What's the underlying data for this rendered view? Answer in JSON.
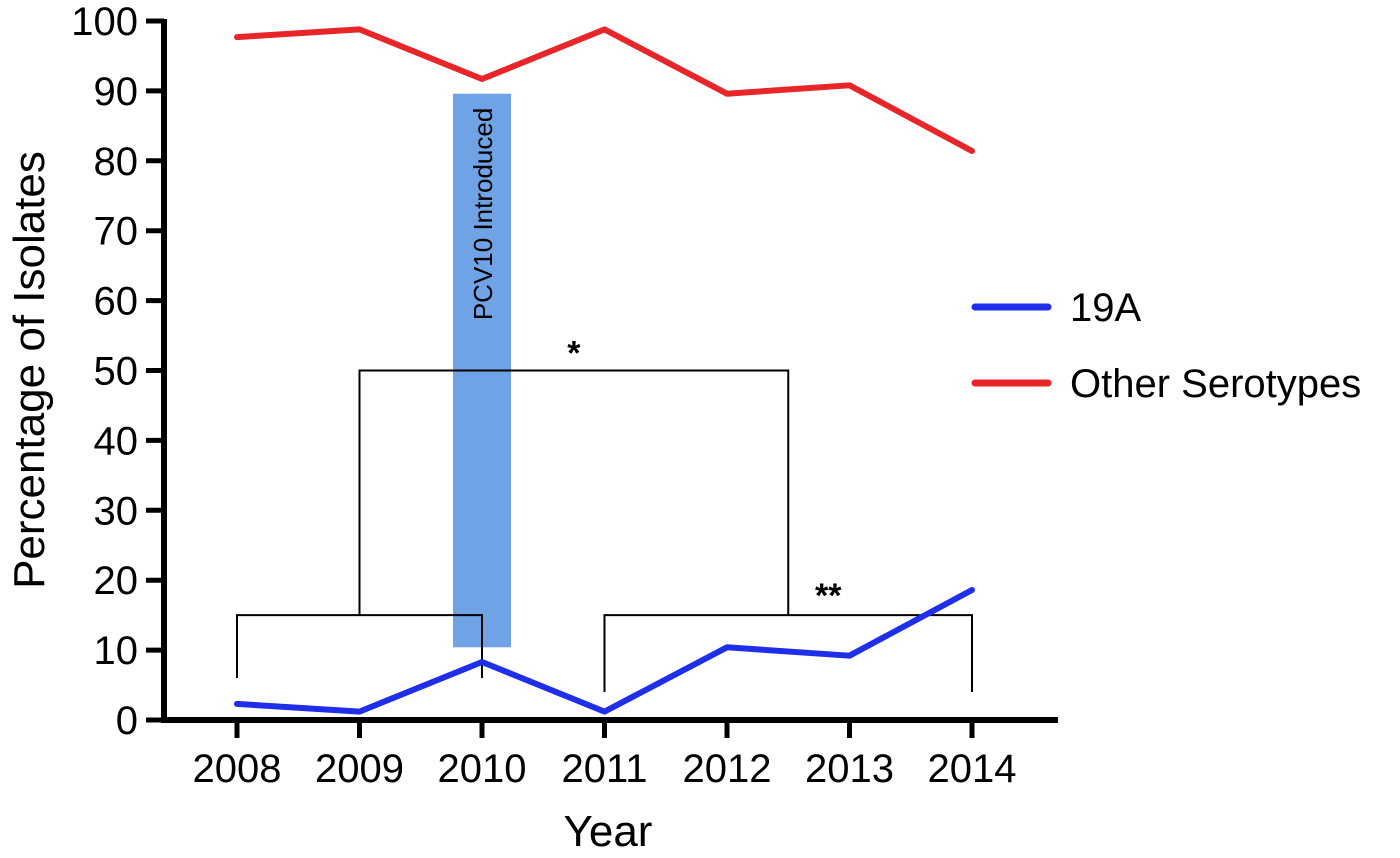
{
  "chart_data": {
    "type": "line",
    "xlabel": "Year",
    "ylabel": "Percentage of Isolates",
    "x": [
      "2008",
      "2009",
      "2010",
      "2011",
      "2012",
      "2013",
      "2014"
    ],
    "ylim": [
      0,
      100
    ],
    "yticks": [
      0,
      10,
      20,
      30,
      40,
      50,
      60,
      70,
      80,
      90,
      100
    ],
    "series": [
      {
        "name": "19A",
        "color": "#1f2ee8",
        "values": [
          2.3,
          1.2,
          8.3,
          1.2,
          10.4,
          9.2,
          18.6
        ]
      },
      {
        "name": "Other Serotypes",
        "color": "#e8262a",
        "values": [
          97.7,
          98.8,
          91.7,
          98.8,
          89.6,
          90.8,
          81.4
        ]
      }
    ],
    "legend_position": "right",
    "annotation_band": {
      "label": "PCV10 Introduced",
      "x": "2010",
      "y_range": [
        10.4,
        89.6
      ],
      "color": "#6fa3e5"
    },
    "significance": [
      {
        "label": "*",
        "spans": [
          [
            "2008",
            "2010"
          ],
          [
            "2011",
            "2014"
          ]
        ],
        "level": 50
      },
      {
        "label": "**",
        "spans": [
          [
            "2011",
            "2014"
          ]
        ],
        "level": 15
      }
    ],
    "brackets": {
      "lower_level": 15,
      "left_group": [
        "2008",
        "2010"
      ],
      "right_group": [
        "2011",
        "2014"
      ],
      "upper_level": 50,
      "stars_upper": "*",
      "stars_lower": "**"
    }
  }
}
